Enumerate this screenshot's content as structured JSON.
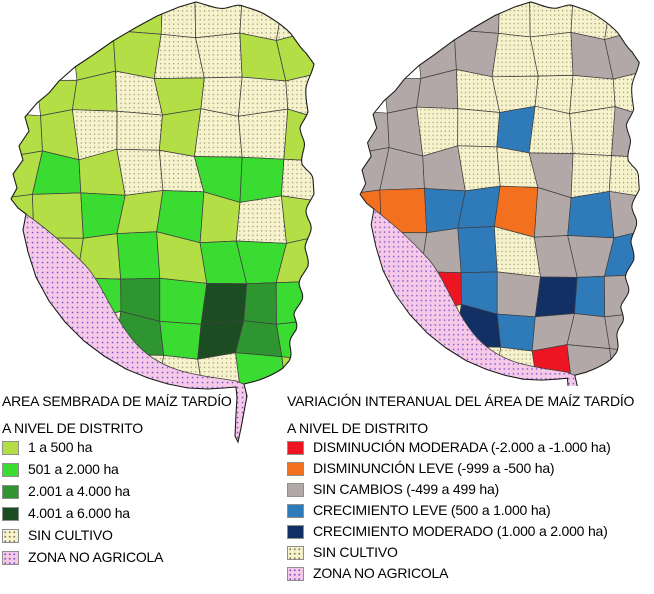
{
  "page": {
    "background": "#ffffff"
  },
  "palette": {
    "L1": "#b3de46",
    "L2": "#3bdc32",
    "L3": "#2e9530",
    "L4": "#1c4d22",
    "RED": "#ee1522",
    "OR": "#f3701e",
    "GR": "#b3a8a8",
    "BL": "#2f7ab9",
    "NV": "#133064",
    "SC": "pattern:sin_cultivo",
    "ZN": "pattern:zona_no_agricola"
  },
  "patterns": {
    "sin_cultivo": {
      "background": "#f5f2cc",
      "dot": "#837c55"
    },
    "zona_no_agricola": {
      "background": "#f7c9e8",
      "dot": "#7456c8"
    }
  },
  "map_style": {
    "district_border": "#3f3f3f",
    "province_border": "#1c1c1c"
  },
  "left_panel": {
    "title": "AREA SEMBRADA DE MAÍZ TARDÍO",
    "subtitle": "A NIVEL DE DISTRITO",
    "legend": [
      {
        "key": "L1",
        "label": "1 a 500 ha"
      },
      {
        "key": "L2",
        "label": "501 a 2.000 ha"
      },
      {
        "key": "L3",
        "label": "2.001 a 4.000 ha"
      },
      {
        "key": "L4",
        "label": "4.001 a 6.000 ha"
      },
      {
        "key": "SC",
        "label": "SIN CULTIVO"
      },
      {
        "key": "ZN",
        "label": "ZONA NO AGRICOLA"
      }
    ],
    "map_grid": [
      [
        "-",
        "-",
        "-",
        "L1",
        "SC",
        "SC",
        "SC",
        "SC"
      ],
      [
        "-",
        "-",
        "L1",
        "L1",
        "SC",
        "SC",
        "L1",
        "L1"
      ],
      [
        "-",
        "L1",
        "L1",
        "SC",
        "L1",
        "SC",
        "SC",
        "SC"
      ],
      [
        "L1",
        "L1",
        "SC",
        "SC",
        "L1",
        "SC",
        "SC",
        "L1"
      ],
      [
        "L1",
        "L2",
        "L1",
        "SC",
        "SC",
        "L2",
        "L2",
        "SC"
      ],
      [
        "L1",
        "L1",
        "L2",
        "L1",
        "L2",
        "L1",
        "SC",
        "L1"
      ],
      [
        "ZN",
        "L1",
        "L1",
        "L2",
        "L1",
        "L2",
        "L2",
        "L1"
      ],
      [
        "ZN",
        "ZN",
        "L2",
        "L3",
        "L2",
        "L4",
        "L3",
        "L2"
      ],
      [
        "ZN",
        "ZN",
        "SC",
        "L3",
        "L2",
        "L4",
        "L3",
        "L2"
      ],
      [
        "ZN",
        "ZN",
        "ZN",
        "SC",
        "SC",
        "SC",
        "L2",
        "L1"
      ]
    ]
  },
  "right_panel": {
    "title": "VARIACIÓN INTERANUAL DEL ÁREA DE MAÍZ TARDÍO",
    "subtitle": "A NIVEL DE DISTRITO",
    "legend": [
      {
        "key": "RED",
        "label": "DISMINUCIÓN MODERADA (-2.000 a -1.000 ha)"
      },
      {
        "key": "OR",
        "label": "DISMINUNCIÓN LEVE (-999 a -500 ha)"
      },
      {
        "key": "GR",
        "label": "SIN CAMBIOS (-499 a 499 ha)"
      },
      {
        "key": "BL",
        "label": "CRECIMIENTO LEVE (500 a 1.000 ha)"
      },
      {
        "key": "NV",
        "label": "CRECIMIENTO MODERADO (1.000 a 2.000 ha)"
      },
      {
        "key": "SC",
        "label": "SIN CULTIVO"
      },
      {
        "key": "ZN",
        "label": "ZONA NO AGRICOLA"
      }
    ],
    "map_grid": [
      [
        "-",
        "-",
        "-",
        "GR",
        "SC",
        "SC",
        "SC",
        "SC"
      ],
      [
        "-",
        "-",
        "GR",
        "GR",
        "SC",
        "SC",
        "GR",
        "GR"
      ],
      [
        "-",
        "GR",
        "GR",
        "SC",
        "SC",
        "SC",
        "SC",
        "SC"
      ],
      [
        "GR",
        "GR",
        "SC",
        "SC",
        "BL",
        "SC",
        "SC",
        "GR"
      ],
      [
        "GR",
        "GR",
        "GR",
        "SC",
        "SC",
        "GR",
        "SC",
        "SC"
      ],
      [
        "OR",
        "OR",
        "BL",
        "BL",
        "OR",
        "GR",
        "BL",
        "GR"
      ],
      [
        "ZN",
        "GR",
        "GR",
        "BL",
        "SC",
        "GR",
        "GR",
        "BL"
      ],
      [
        "ZN",
        "OR",
        "RED",
        "BL",
        "GR",
        "NV",
        "BL",
        "GR"
      ],
      [
        "ZN",
        "ZN",
        "SC",
        "NV",
        "BL",
        "GR",
        "GR",
        "GR"
      ],
      [
        "ZN",
        "ZN",
        "ZN",
        "SC",
        "SC",
        "RED",
        "GR",
        "GR"
      ]
    ]
  }
}
